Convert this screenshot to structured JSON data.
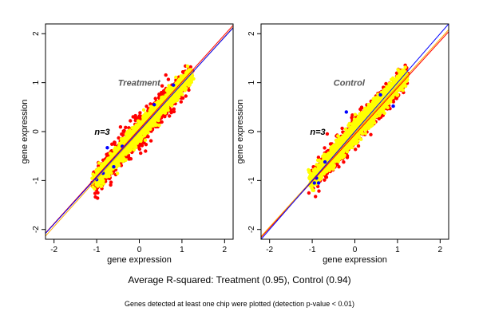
{
  "captions": {
    "main": "Average R-squared: Treatment (0.95), Control (0.94)",
    "note": "Genes detected at least one chip were plotted (detection p-value < 0.01)"
  },
  "colors": {
    "points_main": "#ffff00",
    "points_outer": "#ff0000",
    "points_blue": "#0000ff",
    "line_red": "#ff0000",
    "line_orange": "#ffa500",
    "line_blue": "#0000ff",
    "axis": "#000000"
  },
  "chart_data": [
    {
      "type": "scatter",
      "title": "Treatment",
      "annotation": "n=3",
      "xlabel": "gene expression",
      "ylabel": "gene expression",
      "xlim": [
        -2.2,
        2.2
      ],
      "ylim": [
        -2.2,
        2.2
      ],
      "x_ticks": [
        "-2",
        "-1",
        "0",
        "1",
        "2"
      ],
      "y_ticks": [
        "-2",
        "-1",
        "0",
        "1",
        "2"
      ],
      "grid": false,
      "cloud": {
        "x_range": [
          -1.05,
          1.2
        ],
        "corr": 0.975,
        "spread_main": 0.085,
        "spread_outer": 0.13
      },
      "blue_points": [
        [
          -1.0,
          -0.98
        ],
        [
          -0.75,
          -0.33
        ],
        [
          -0.4,
          -0.3
        ],
        [
          0.35,
          0.55
        ],
        [
          -0.85,
          -0.85
        ],
        [
          0.8,
          0.95
        ],
        [
          -0.6,
          -0.72
        ]
      ],
      "lines": [
        {
          "color": "line_red",
          "intercept": 0.05,
          "slope": 0.965
        },
        {
          "color": "line_orange",
          "intercept": 0.0,
          "slope": 0.97
        },
        {
          "color": "line_blue",
          "intercept": 0.02,
          "slope": 0.955
        }
      ]
    },
    {
      "type": "scatter",
      "title": "Control",
      "annotation": "n=3",
      "xlabel": "gene expression",
      "ylabel": "gene expression",
      "xlim": [
        -2.2,
        2.2
      ],
      "ylim": [
        -2.2,
        2.2
      ],
      "x_ticks": [
        "-2",
        "-1",
        "0",
        "1",
        "2"
      ],
      "y_ticks": [
        "-2",
        "-1",
        "0",
        "1",
        "2"
      ],
      "grid": false,
      "cloud": {
        "x_range": [
          -1.05,
          1.2
        ],
        "corr": 0.97,
        "spread_main": 0.09,
        "spread_outer": 0.12
      },
      "blue_points": [
        [
          -0.95,
          -1.05
        ],
        [
          -0.85,
          -1.05
        ],
        [
          -0.2,
          0.4
        ],
        [
          -0.7,
          -0.62
        ],
        [
          0.9,
          0.52
        ],
        [
          -0.9,
          -0.95
        ],
        [
          0.6,
          0.75
        ]
      ],
      "lines": [
        {
          "color": "line_red",
          "intercept": -0.06,
          "slope": 0.955
        },
        {
          "color": "line_orange",
          "intercept": -0.03,
          "slope": 0.96
        },
        {
          "color": "line_blue",
          "intercept": 0.0,
          "slope": 1.0
        }
      ]
    }
  ]
}
